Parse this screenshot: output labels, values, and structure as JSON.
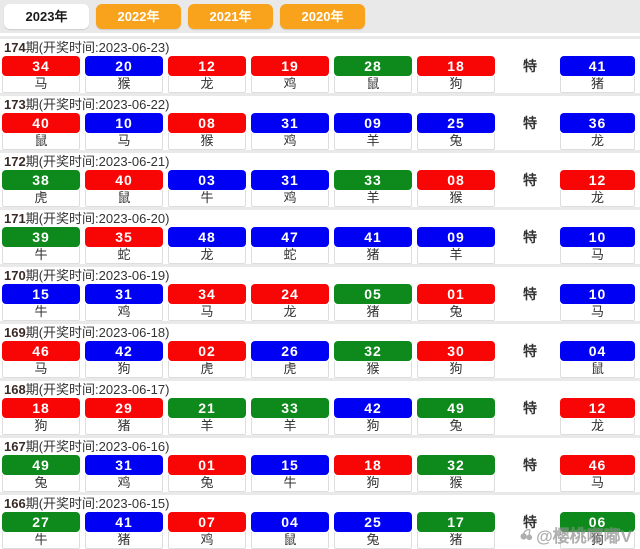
{
  "tabs": [
    {
      "label": "2023年",
      "active": true
    },
    {
      "label": "2022年",
      "active": false
    },
    {
      "label": "2021年",
      "active": false
    },
    {
      "label": "2020年",
      "active": false
    }
  ],
  "special_label": "特",
  "watermark": {
    "icon": "cherries-icon",
    "text": "@樱桃嘟嘟V"
  },
  "ball_colors": {
    "red": "#f80505",
    "blue": "#0000f5",
    "green": "#0d8a1b"
  },
  "tab_colors": {
    "inactive_bg": "#f9a21b",
    "active_bg": "#ffffff"
  },
  "draws": [
    {
      "issue": "174",
      "time": "期(开奖时间:2023-06-23)",
      "balls": [
        {
          "num": "34",
          "color": "red",
          "zodiac": "马"
        },
        {
          "num": "20",
          "color": "blue",
          "zodiac": "猴"
        },
        {
          "num": "12",
          "color": "red",
          "zodiac": "龙"
        },
        {
          "num": "19",
          "color": "red",
          "zodiac": "鸡"
        },
        {
          "num": "28",
          "color": "green",
          "zodiac": "鼠"
        },
        {
          "num": "18",
          "color": "red",
          "zodiac": "狗"
        }
      ],
      "special": {
        "num": "41",
        "color": "blue",
        "zodiac": "猪"
      }
    },
    {
      "issue": "173",
      "time": "期(开奖时间:2023-06-22)",
      "balls": [
        {
          "num": "40",
          "color": "red",
          "zodiac": "鼠"
        },
        {
          "num": "10",
          "color": "blue",
          "zodiac": "马"
        },
        {
          "num": "08",
          "color": "red",
          "zodiac": "猴"
        },
        {
          "num": "31",
          "color": "blue",
          "zodiac": "鸡"
        },
        {
          "num": "09",
          "color": "blue",
          "zodiac": "羊"
        },
        {
          "num": "25",
          "color": "blue",
          "zodiac": "兔"
        }
      ],
      "special": {
        "num": "36",
        "color": "blue",
        "zodiac": "龙"
      }
    },
    {
      "issue": "172",
      "time": "期(开奖时间:2023-06-21)",
      "balls": [
        {
          "num": "38",
          "color": "green",
          "zodiac": "虎"
        },
        {
          "num": "40",
          "color": "red",
          "zodiac": "鼠"
        },
        {
          "num": "03",
          "color": "blue",
          "zodiac": "牛"
        },
        {
          "num": "31",
          "color": "blue",
          "zodiac": "鸡"
        },
        {
          "num": "33",
          "color": "green",
          "zodiac": "羊"
        },
        {
          "num": "08",
          "color": "red",
          "zodiac": "猴"
        }
      ],
      "special": {
        "num": "12",
        "color": "red",
        "zodiac": "龙"
      }
    },
    {
      "issue": "171",
      "time": "期(开奖时间:2023-06-20)",
      "balls": [
        {
          "num": "39",
          "color": "green",
          "zodiac": "牛"
        },
        {
          "num": "35",
          "color": "red",
          "zodiac": "蛇"
        },
        {
          "num": "48",
          "color": "blue",
          "zodiac": "龙"
        },
        {
          "num": "47",
          "color": "blue",
          "zodiac": "蛇"
        },
        {
          "num": "41",
          "color": "blue",
          "zodiac": "猪"
        },
        {
          "num": "09",
          "color": "blue",
          "zodiac": "羊"
        }
      ],
      "special": {
        "num": "10",
        "color": "blue",
        "zodiac": "马"
      }
    },
    {
      "issue": "170",
      "time": "期(开奖时间:2023-06-19)",
      "balls": [
        {
          "num": "15",
          "color": "blue",
          "zodiac": "牛"
        },
        {
          "num": "31",
          "color": "blue",
          "zodiac": "鸡"
        },
        {
          "num": "34",
          "color": "red",
          "zodiac": "马"
        },
        {
          "num": "24",
          "color": "red",
          "zodiac": "龙"
        },
        {
          "num": "05",
          "color": "green",
          "zodiac": "猪"
        },
        {
          "num": "01",
          "color": "red",
          "zodiac": "兔"
        }
      ],
      "special": {
        "num": "10",
        "color": "blue",
        "zodiac": "马"
      }
    },
    {
      "issue": "169",
      "time": "期(开奖时间:2023-06-18)",
      "balls": [
        {
          "num": "46",
          "color": "red",
          "zodiac": "马"
        },
        {
          "num": "42",
          "color": "blue",
          "zodiac": "狗"
        },
        {
          "num": "02",
          "color": "red",
          "zodiac": "虎"
        },
        {
          "num": "26",
          "color": "blue",
          "zodiac": "虎"
        },
        {
          "num": "32",
          "color": "green",
          "zodiac": "猴"
        },
        {
          "num": "30",
          "color": "red",
          "zodiac": "狗"
        }
      ],
      "special": {
        "num": "04",
        "color": "blue",
        "zodiac": "鼠"
      }
    },
    {
      "issue": "168",
      "time": "期(开奖时间:2023-06-17)",
      "balls": [
        {
          "num": "18",
          "color": "red",
          "zodiac": "狗"
        },
        {
          "num": "29",
          "color": "red",
          "zodiac": "猪"
        },
        {
          "num": "21",
          "color": "green",
          "zodiac": "羊"
        },
        {
          "num": "33",
          "color": "green",
          "zodiac": "羊"
        },
        {
          "num": "42",
          "color": "blue",
          "zodiac": "狗"
        },
        {
          "num": "49",
          "color": "green",
          "zodiac": "兔"
        }
      ],
      "special": {
        "num": "12",
        "color": "red",
        "zodiac": "龙"
      }
    },
    {
      "issue": "167",
      "time": "期(开奖时间:2023-06-16)",
      "balls": [
        {
          "num": "49",
          "color": "green",
          "zodiac": "兔"
        },
        {
          "num": "31",
          "color": "blue",
          "zodiac": "鸡"
        },
        {
          "num": "01",
          "color": "red",
          "zodiac": "兔"
        },
        {
          "num": "15",
          "color": "blue",
          "zodiac": "牛"
        },
        {
          "num": "18",
          "color": "red",
          "zodiac": "狗"
        },
        {
          "num": "32",
          "color": "green",
          "zodiac": "猴"
        }
      ],
      "special": {
        "num": "46",
        "color": "red",
        "zodiac": "马"
      }
    },
    {
      "issue": "166",
      "time": "期(开奖时间:2023-06-15)",
      "balls": [
        {
          "num": "27",
          "color": "green",
          "zodiac": "牛"
        },
        {
          "num": "41",
          "color": "blue",
          "zodiac": "猪"
        },
        {
          "num": "07",
          "color": "red",
          "zodiac": "鸡"
        },
        {
          "num": "04",
          "color": "blue",
          "zodiac": "鼠"
        },
        {
          "num": "25",
          "color": "blue",
          "zodiac": "兔"
        },
        {
          "num": "17",
          "color": "green",
          "zodiac": "猪"
        }
      ],
      "special": {
        "num": "06",
        "color": "green",
        "zodiac": "狗"
      }
    }
  ]
}
